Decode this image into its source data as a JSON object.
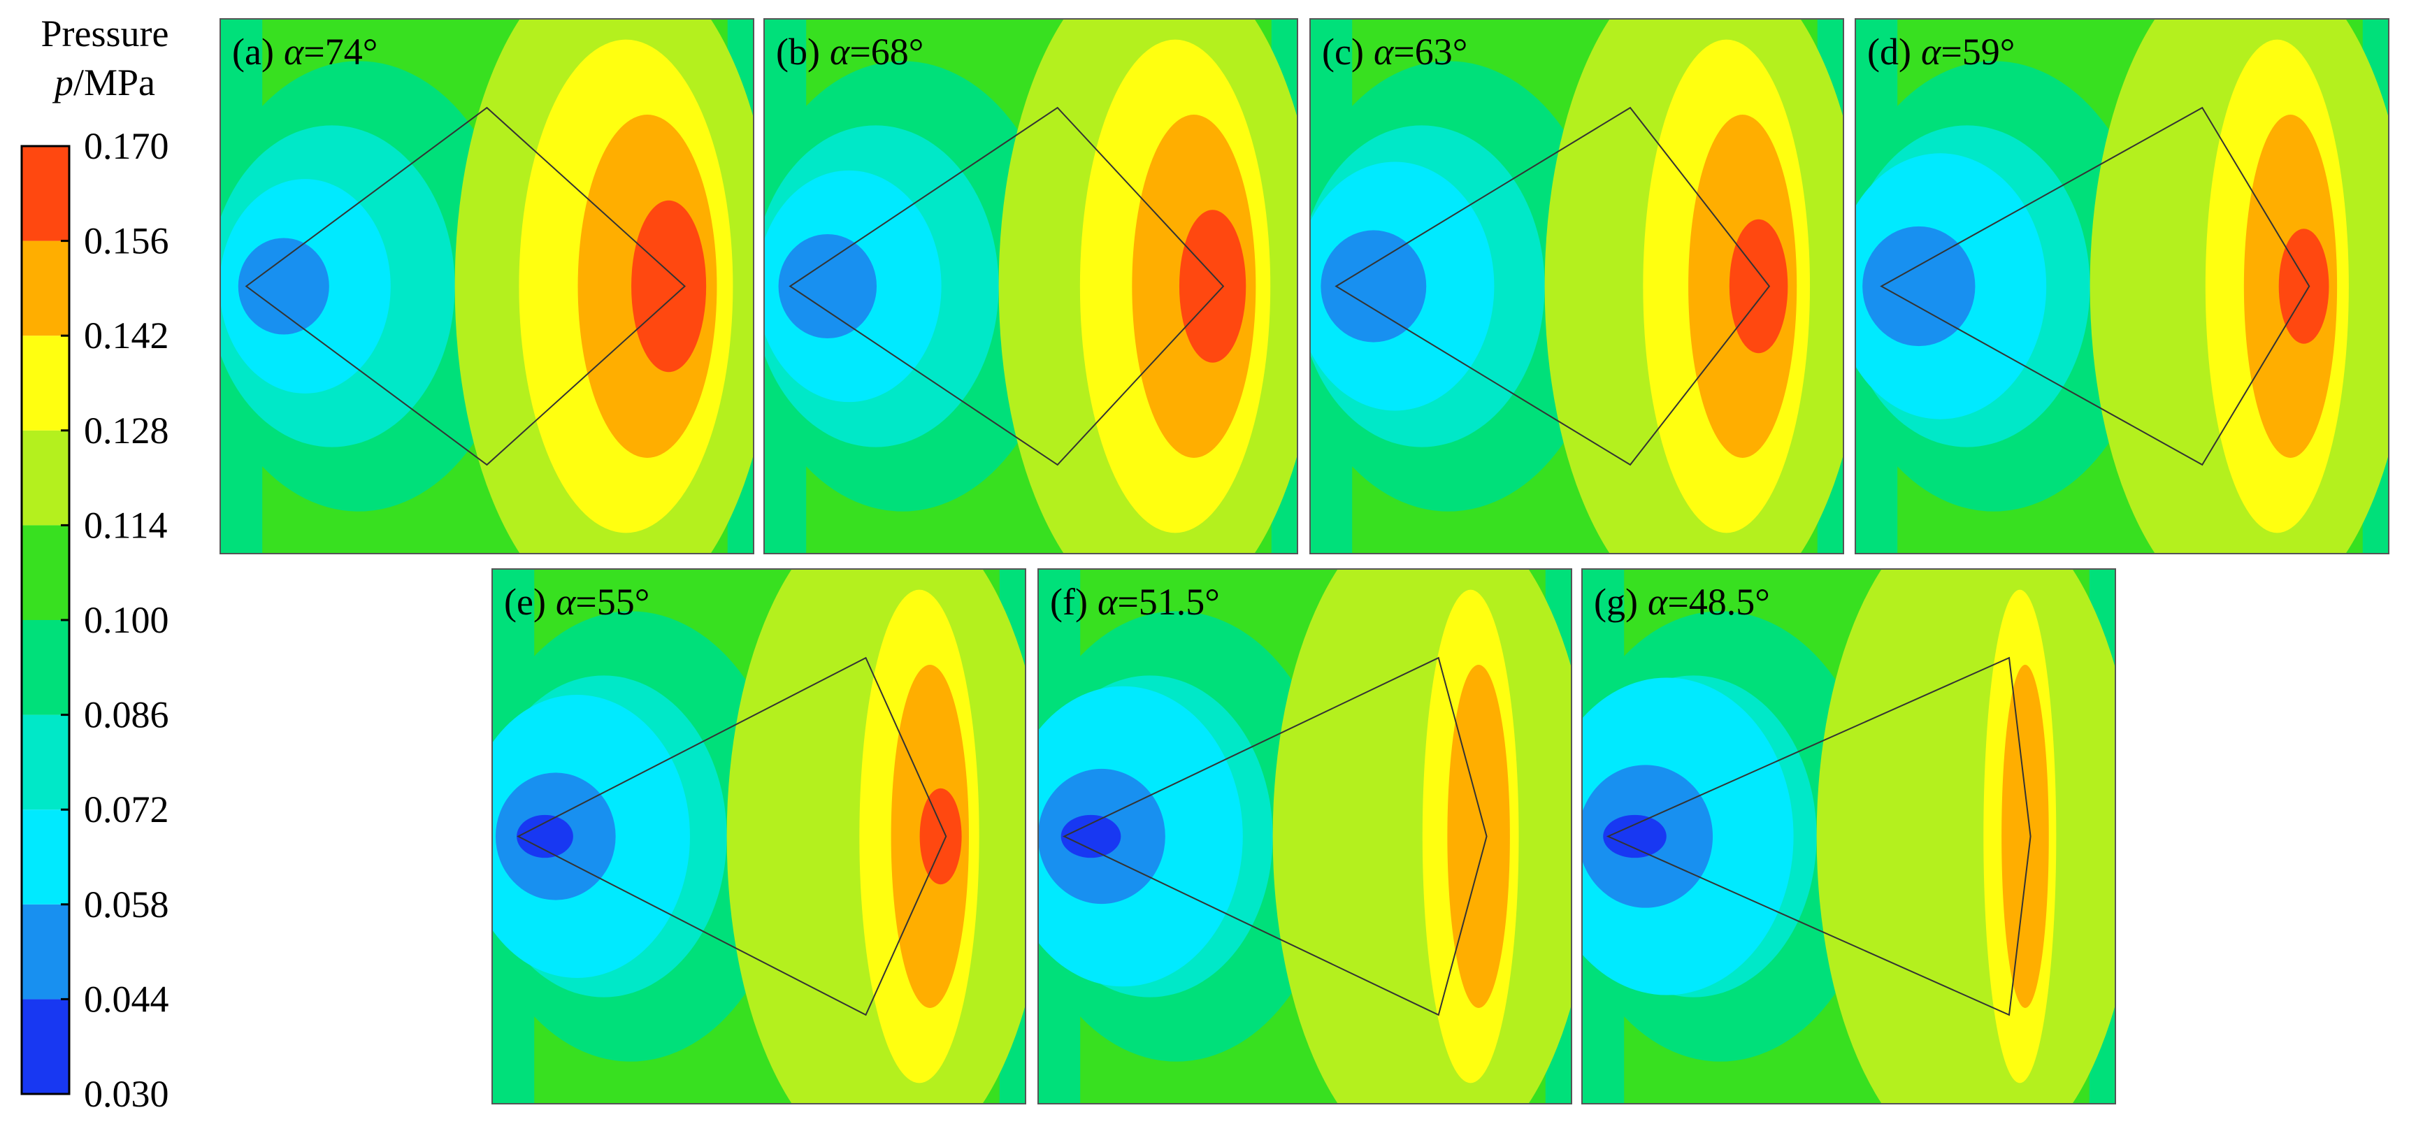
{
  "colorbar": {
    "title": "Pressure",
    "symbol": "p",
    "unit": "/MPa",
    "ticks": [
      {
        "value": 0.03,
        "label": "0.030"
      },
      {
        "value": 0.044,
        "label": "0.044"
      },
      {
        "value": 0.058,
        "label": "0.058"
      },
      {
        "value": 0.072,
        "label": "0.072"
      },
      {
        "value": 0.086,
        "label": "0.086"
      },
      {
        "value": 0.1,
        "label": "0.100"
      },
      {
        "value": 0.114,
        "label": "0.114"
      },
      {
        "value": 0.128,
        "label": "0.128"
      },
      {
        "value": 0.142,
        "label": "0.142"
      },
      {
        "value": 0.156,
        "label": "0.156"
      },
      {
        "value": 0.17,
        "label": "0.170"
      }
    ],
    "colors": [
      "#1838f2",
      "#1890f0",
      "#00eaff",
      "#00e8c8",
      "#00e07a",
      "#38e020",
      "#b4f01e",
      "#ffff10",
      "#ffae00",
      "#ff4810"
    ]
  },
  "panels": [
    {
      "tag": "(a)",
      "symbol": "α",
      "angle": "=74°"
    },
    {
      "tag": "(b)",
      "symbol": "α",
      "angle": "=68°"
    },
    {
      "tag": "(c)",
      "symbol": "α",
      "angle": "=63°"
    },
    {
      "tag": "(d)",
      "symbol": "α",
      "angle": "=59°"
    },
    {
      "tag": "(e)",
      "symbol": "α",
      "angle": "=55°"
    },
    {
      "tag": "(f)",
      "symbol": "α",
      "angle": "=51.5°"
    },
    {
      "tag": "(g)",
      "symbol": "α",
      "angle": "=48.5°"
    }
  ]
}
